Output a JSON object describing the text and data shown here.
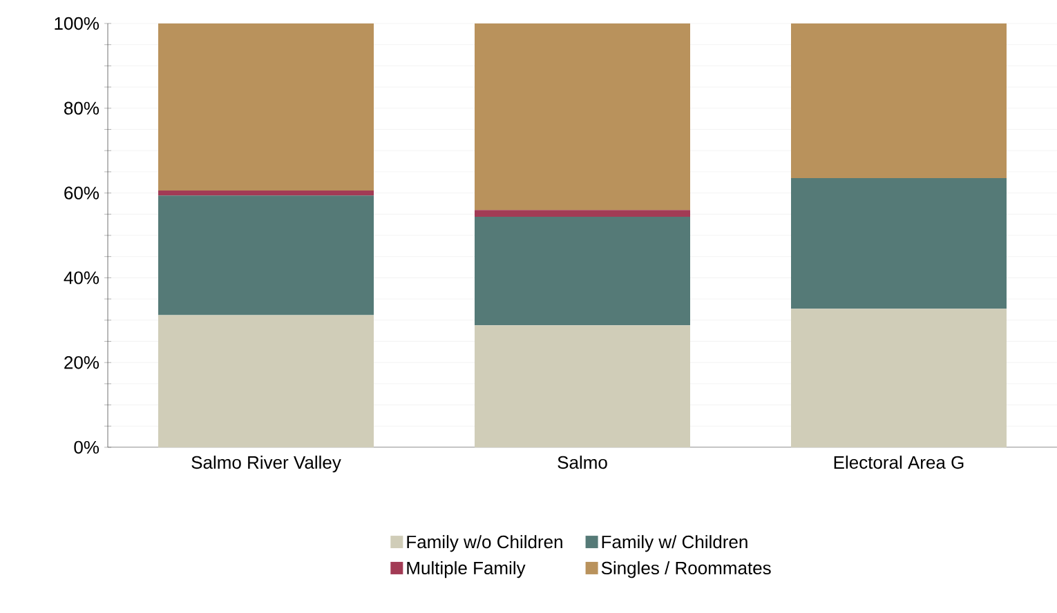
{
  "chart_data": {
    "type": "bar",
    "stacked": true,
    "categories": [
      "Salmo River Valley",
      "Salmo",
      "Electoral Area G"
    ],
    "series": [
      {
        "name": "Family w/o Children",
        "color": "#d0cdb8",
        "values": [
          31.2,
          28.8,
          32.7
        ]
      },
      {
        "name": "Family w/ Children",
        "color": "#557a77",
        "values": [
          28.2,
          25.6,
          30.8
        ]
      },
      {
        "name": "Multiple Family",
        "color": "#a23b55",
        "values": [
          1.2,
          1.6,
          0
        ]
      },
      {
        "name": "Singles / Roommates",
        "color": "#b9925c",
        "values": [
          39.4,
          44.0,
          36.5
        ]
      }
    ],
    "ylim": [
      0,
      100
    ],
    "yticks": [
      {
        "value": 0,
        "label": "0%"
      },
      {
        "value": 5,
        "label": null
      },
      {
        "value": 10,
        "label": null
      },
      {
        "value": 15,
        "label": null
      },
      {
        "value": 20,
        "label": "20%"
      },
      {
        "value": 25,
        "label": null
      },
      {
        "value": 30,
        "label": null
      },
      {
        "value": 35,
        "label": null
      },
      {
        "value": 40,
        "label": "40%"
      },
      {
        "value": 45,
        "label": null
      },
      {
        "value": 50,
        "label": null
      },
      {
        "value": 55,
        "label": null
      },
      {
        "value": 60,
        "label": "60%"
      },
      {
        "value": 65,
        "label": null
      },
      {
        "value": 70,
        "label": null
      },
      {
        "value": 75,
        "label": null
      },
      {
        "value": 80,
        "label": "80%"
      },
      {
        "value": 85,
        "label": null
      },
      {
        "value": 90,
        "label": null
      },
      {
        "value": 95,
        "label": null
      },
      {
        "value": 100,
        "label": "100%"
      }
    ],
    "grid": "y",
    "legend": "bottom"
  }
}
